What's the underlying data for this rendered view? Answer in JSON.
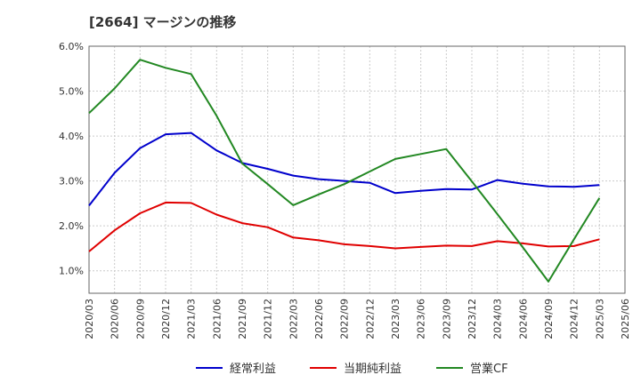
{
  "chart_data": {
    "type": "line",
    "title": "[2664]  マージンの推移",
    "xlabel": "",
    "ylabel": "",
    "ylim": [
      0.5,
      6.0
    ],
    "yticks": [
      "6.0%",
      "5.0%",
      "4.0%",
      "3.0%",
      "2.0%",
      "1.0%"
    ],
    "ytick_values": [
      6.0,
      5.0,
      4.0,
      3.0,
      2.0,
      1.0
    ],
    "x": [
      "2020/03",
      "2020/06",
      "2020/09",
      "2020/12",
      "2021/03",
      "2021/06",
      "2021/09",
      "2021/12",
      "2022/03",
      "2022/06",
      "2022/09",
      "2022/12",
      "2023/03",
      "2023/06",
      "2023/09",
      "2023/12",
      "2024/03",
      "2024/06",
      "2024/09",
      "2024/12",
      "2025/03",
      "2025/06"
    ],
    "grid": true,
    "legend_position": "bottom",
    "series": [
      {
        "name": "経常利益",
        "color": "#0000cc",
        "values": [
          2.45,
          3.18,
          3.73,
          4.04,
          4.07,
          3.68,
          3.4,
          3.27,
          3.12,
          3.04,
          3.0,
          2.96,
          2.73,
          2.78,
          2.82,
          2.81,
          3.02,
          2.94,
          2.88,
          2.87,
          2.91,
          null
        ]
      },
      {
        "name": "当期純利益",
        "color": "#e00000",
        "values": [
          1.43,
          1.9,
          2.28,
          2.52,
          2.51,
          2.25,
          2.06,
          1.97,
          1.74,
          1.68,
          1.59,
          1.55,
          1.5,
          1.53,
          1.56,
          1.55,
          1.66,
          1.61,
          1.54,
          1.55,
          1.7,
          null
        ]
      },
      {
        "name": "営業CF",
        "color": "#228822",
        "values": [
          4.51,
          5.06,
          5.7,
          5.52,
          5.38,
          4.45,
          3.39,
          2.93,
          2.46,
          2.7,
          2.93,
          3.21,
          3.49,
          3.6,
          3.71,
          2.99,
          2.26,
          1.52,
          0.76,
          1.7,
          2.62,
          null
        ]
      }
    ]
  }
}
